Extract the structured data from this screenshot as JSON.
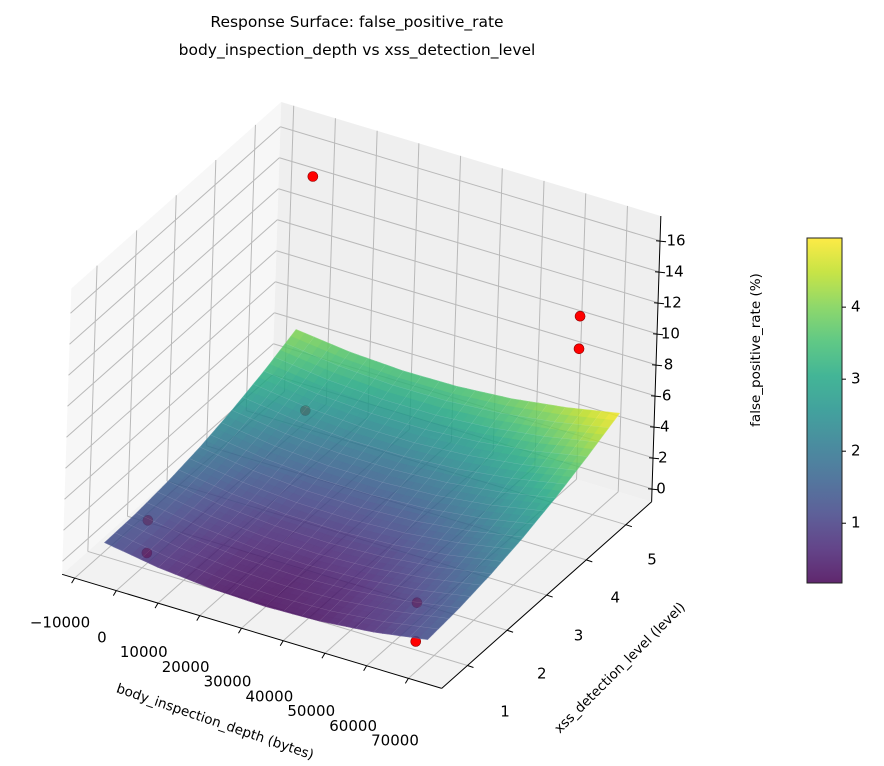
{
  "chart_data": {
    "type": "surface",
    "title": "Response Surface: false_positive_rate",
    "subtitle": "body_inspection_depth vs xss_detection_level",
    "xlabel": "body_inspection_depth (bytes)",
    "ylabel": "xss_detection_level (level)",
    "zlabel": "false_positive_rate (%)",
    "colorbar_label": "false_positive_rate (%)",
    "colormap": "viridis",
    "clim": [
      0.17,
      4.96
    ],
    "xlim": [
      -13000,
      78000
    ],
    "ylim": [
      0.35,
      5.65
    ],
    "zlim": [
      -0.84,
      17.6
    ],
    "grid": true,
    "xticks": [
      "−10000",
      "0",
      "10000",
      "20000",
      "30000",
      "40000",
      "50000",
      "60000",
      "70000"
    ],
    "xtick_values": [
      -10000,
      0,
      10000,
      20000,
      30000,
      40000,
      50000,
      60000,
      70000
    ],
    "yticks": [
      "1",
      "2",
      "3",
      "4",
      "5"
    ],
    "ytick_values": [
      1,
      2,
      3,
      4,
      5
    ],
    "zticks": [
      "0",
      "2",
      "4",
      "6",
      "8",
      "10",
      "12",
      "14",
      "16"
    ],
    "ztick_values": [
      0,
      2,
      4,
      6,
      8,
      10,
      12,
      14,
      16
    ],
    "colorbar_ticks": [
      "1",
      "2",
      "3",
      "4"
    ],
    "colorbar_tick_values": [
      1,
      2,
      3,
      4
    ],
    "surface": {
      "x_range": [
        -5427,
        71987
      ],
      "y_range": [
        0.6,
        5.4
      ],
      "z": [
        [
          1.25,
          0.69,
          0.36,
          0.25,
          0.36,
          0.69,
          1.25
        ],
        [
          1.33,
          0.8,
          0.49,
          0.4,
          0.54,
          0.9,
          1.48
        ],
        [
          1.57,
          1.06,
          0.78,
          0.72,
          0.88,
          1.26,
          1.87
        ],
        [
          1.96,
          1.48,
          1.22,
          1.19,
          1.37,
          1.78,
          2.41
        ],
        [
          2.52,
          2.06,
          1.83,
          1.82,
          2.03,
          2.46,
          3.12
        ],
        [
          3.23,
          2.8,
          2.59,
          2.6,
          2.84,
          3.3,
          3.98
        ],
        [
          4.1,
          3.69,
          3.51,
          3.55,
          3.81,
          4.29,
          4.95
        ]
      ],
      "opacity": 0.85
    },
    "points": [
      {
        "x": 1024,
        "y": 1,
        "z": 0.2
      },
      {
        "x": 1024,
        "y": 1,
        "z": 2.3
      },
      {
        "x": 65536,
        "y": 1,
        "z": -0.3
      },
      {
        "x": 65536,
        "y": 1,
        "z": 2.2
      },
      {
        "x": 1024,
        "y": 5,
        "z": 0.3
      },
      {
        "x": 1024,
        "y": 5,
        "z": 15.4
      },
      {
        "x": 65536,
        "y": 5,
        "z": 9.5
      },
      {
        "x": 65536,
        "y": 5,
        "z": 11.6
      }
    ],
    "point_color": "#ff0000"
  }
}
